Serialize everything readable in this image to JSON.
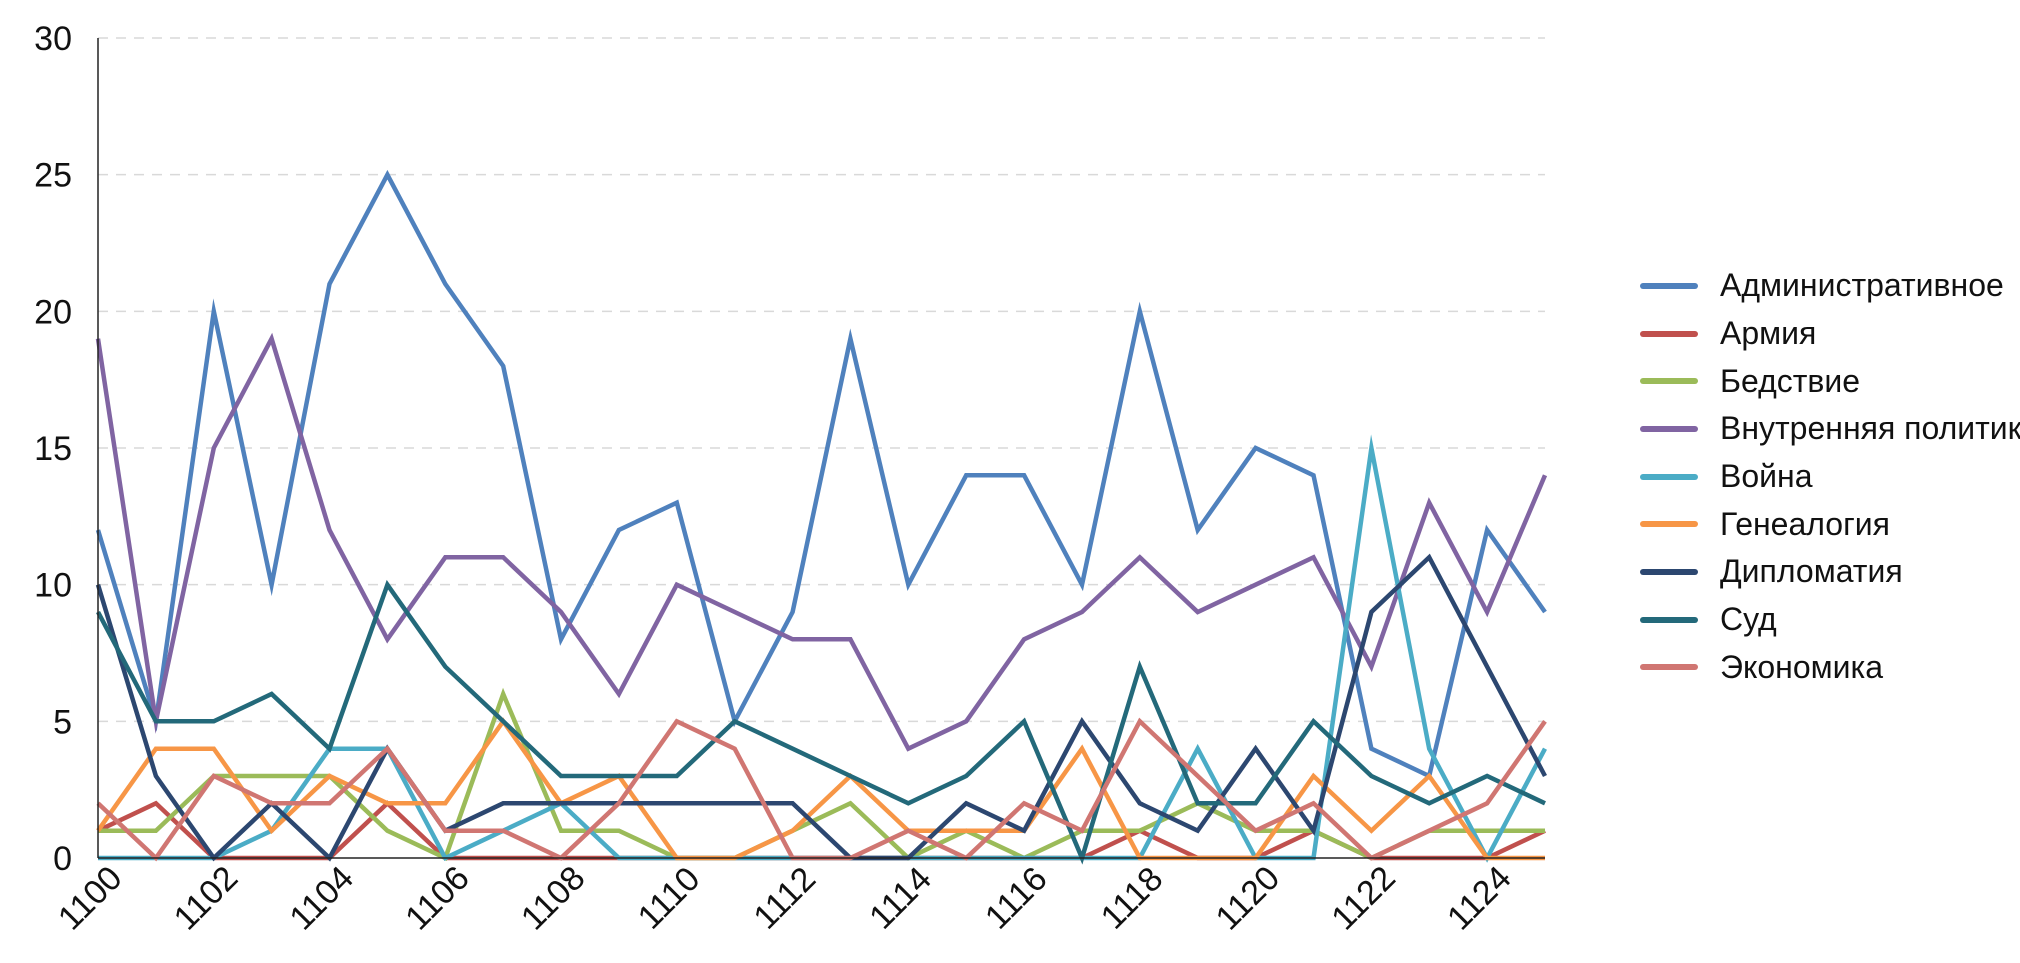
{
  "chart_data": {
    "type": "line",
    "title": "",
    "xlabel": "",
    "ylabel": "",
    "ylim": [
      0,
      30
    ],
    "y_ticks": [
      "0",
      "5",
      "10",
      "15",
      "20",
      "25",
      "30"
    ],
    "x_tick_labels": [
      "1100",
      "1102",
      "1104",
      "1106",
      "1108",
      "1110",
      "1112",
      "1114",
      "1116",
      "1118",
      "1120",
      "1122",
      "1124"
    ],
    "grid": "horizontal dashed",
    "legend_position": "right",
    "x": [
      1100,
      1101,
      1102,
      1103,
      1104,
      1105,
      1106,
      1107,
      1108,
      1109,
      1110,
      1111,
      1112,
      1113,
      1114,
      1115,
      1116,
      1117,
      1118,
      1119,
      1120,
      1121,
      1122,
      1123,
      1124,
      1125
    ],
    "series": [
      {
        "name": "Административное",
        "color": "#4F81BD",
        "values": [
          12,
          5,
          20,
          10,
          21,
          25,
          21,
          18,
          8,
          12,
          13,
          5,
          9,
          19,
          10,
          14,
          14,
          10,
          20,
          12,
          15,
          14,
          4,
          3,
          12,
          9
        ]
      },
      {
        "name": "Армия",
        "color": "#C0504D",
        "values": [
          1,
          2,
          0,
          0,
          0,
          2,
          0,
          0,
          0,
          0,
          0,
          0,
          0,
          0,
          0,
          0,
          0,
          0,
          1,
          0,
          0,
          1,
          0,
          0,
          0,
          1
        ]
      },
      {
        "name": "Бедствие",
        "color": "#9BBB59",
        "values": [
          1,
          1,
          3,
          3,
          3,
          1,
          0,
          6,
          1,
          1,
          0,
          0,
          1,
          2,
          0,
          1,
          0,
          1,
          1,
          2,
          1,
          1,
          0,
          1,
          1,
          1
        ]
      },
      {
        "name": "Внутренняя политика",
        "color": "#8064A2",
        "values": [
          19,
          5,
          15,
          19,
          12,
          8,
          11,
          11,
          9,
          6,
          10,
          9,
          8,
          8,
          4,
          5,
          8,
          9,
          11,
          9,
          10,
          11,
          7,
          13,
          9,
          14
        ]
      },
      {
        "name": "Война",
        "color": "#4BACC6",
        "values": [
          0,
          0,
          0,
          1,
          4,
          4,
          0,
          1,
          2,
          0,
          0,
          0,
          0,
          0,
          0,
          0,
          0,
          0,
          0,
          4,
          0,
          0,
          15,
          4,
          0,
          4
        ]
      },
      {
        "name": "Генеалогия",
        "color": "#F79646",
        "values": [
          1,
          4,
          4,
          1,
          3,
          2,
          2,
          5,
          2,
          3,
          0,
          0,
          1,
          3,
          1,
          1,
          1,
          4,
          0,
          0,
          0,
          3,
          1,
          3,
          0,
          0
        ]
      },
      {
        "name": "Дипломатия",
        "color": "#2C4770",
        "values": [
          10,
          3,
          0,
          2,
          0,
          4,
          1,
          2,
          2,
          2,
          2,
          2,
          2,
          0,
          0,
          2,
          1,
          5,
          2,
          1,
          4,
          1,
          9,
          11,
          7,
          3
        ]
      },
      {
        "name": "Суд",
        "color": "#23697A",
        "values": [
          9,
          5,
          5,
          6,
          4,
          10,
          7,
          5,
          3,
          3,
          3,
          5,
          4,
          3,
          2,
          3,
          5,
          0,
          7,
          2,
          2,
          5,
          3,
          2,
          3,
          2
        ]
      },
      {
        "name": "Экономика",
        "color": "#D07672",
        "values": [
          2,
          0,
          3,
          2,
          2,
          4,
          1,
          1,
          0,
          2,
          5,
          4,
          0,
          0,
          1,
          0,
          2,
          1,
          5,
          3,
          1,
          2,
          0,
          1,
          2,
          5
        ]
      }
    ]
  }
}
